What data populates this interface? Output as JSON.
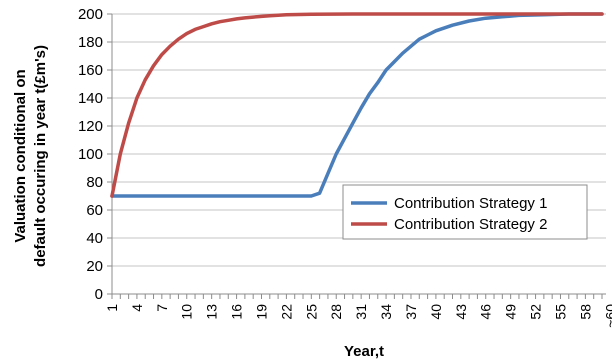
{
  "chart_data": {
    "type": "line",
    "title": "",
    "xlabel": "Year,t",
    "ylabel": [
      "Valuation conditional on",
      "default occuring in year t(£m's)"
    ],
    "ylim": [
      0,
      200
    ],
    "yticks": [
      0,
      20,
      40,
      60,
      80,
      100,
      120,
      140,
      160,
      180,
      200
    ],
    "xlim": [
      1,
      60
    ],
    "xtick_labels": [
      "1",
      "4",
      "7",
      "10",
      "13",
      "16",
      "19",
      "22",
      "25",
      "28",
      "31",
      "34",
      "37",
      "40",
      "43",
      "46",
      "49",
      "52",
      "55",
      "58",
      "~60"
    ],
    "grid": "horizontal",
    "legend": "bottom-right",
    "series": [
      {
        "name": "Contribution Strategy 1",
        "color": "#4a7ebb",
        "x": [
          1,
          5,
          10,
          15,
          20,
          24,
          25,
          26,
          27,
          28,
          29,
          30,
          31,
          32,
          33,
          34,
          35,
          36,
          37,
          38,
          39,
          40,
          42,
          44,
          46,
          48,
          50,
          53,
          56,
          58,
          60
        ],
        "y": [
          70,
          70,
          70,
          70,
          70,
          70,
          70,
          72,
          86,
          100,
          111,
          122,
          133,
          143,
          151,
          160,
          166,
          172,
          177,
          182,
          185,
          188,
          192,
          195,
          197,
          198,
          199,
          199.5,
          200,
          200,
          200
        ]
      },
      {
        "name": "Contribution Strategy 2",
        "color": "#be4b48",
        "x": [
          1,
          2,
          3,
          4,
          5,
          6,
          7,
          8,
          9,
          10,
          11,
          12,
          13,
          14,
          15,
          16,
          17,
          18,
          19,
          20,
          22,
          25,
          30,
          40,
          50,
          60
        ],
        "y": [
          70,
          100,
          122,
          140,
          153,
          163,
          171,
          177,
          182,
          186,
          189,
          191,
          193,
          194.5,
          195.5,
          196.5,
          197.2,
          197.8,
          198.3,
          198.8,
          199.4,
          199.8,
          200,
          200,
          200,
          200
        ]
      }
    ]
  }
}
